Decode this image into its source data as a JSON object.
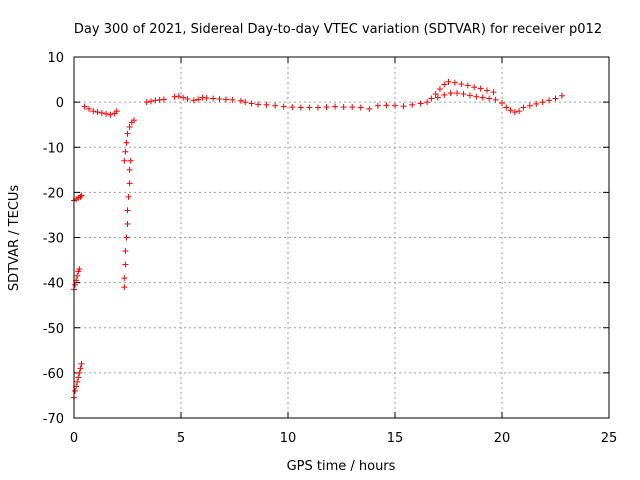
{
  "chart_data": {
    "type": "scatter",
    "title": "Day 300 of 2021, Sidereal Day-to-day VTEC variation (SDTVAR) for receiver p012",
    "xlabel": "GPS time / hours",
    "ylabel": "SDTVAR / TECUs",
    "xlim": [
      0,
      25
    ],
    "ylim": [
      -70,
      10
    ],
    "xticks": [
      "0",
      "5",
      "10",
      "15",
      "20",
      "25"
    ],
    "yticks": [
      "10",
      "0",
      "-10",
      "-20",
      "-30",
      "-40",
      "-50",
      "-60",
      "-70"
    ],
    "grid": true,
    "marker": "+",
    "series": [
      {
        "name": "SDTVAR",
        "color": "#ff0000",
        "points": [
          [
            0.0,
            -65.5
          ],
          [
            0.05,
            -64
          ],
          [
            0.1,
            -63
          ],
          [
            0.15,
            -62
          ],
          [
            0.2,
            -61
          ],
          [
            0.25,
            -60
          ],
          [
            0.3,
            -59
          ],
          [
            0.35,
            -58
          ],
          [
            0.0,
            -41.5
          ],
          [
            0.05,
            -40.5
          ],
          [
            0.1,
            -39.5
          ],
          [
            0.15,
            -38.5
          ],
          [
            0.2,
            -37.5
          ],
          [
            0.25,
            -37
          ],
          [
            0.0,
            -21.8
          ],
          [
            0.1,
            -21.5
          ],
          [
            0.2,
            -21.2
          ],
          [
            0.3,
            -21.0
          ],
          [
            0.35,
            -20.7
          ],
          [
            0.5,
            -1.0
          ],
          [
            0.7,
            -1.5
          ],
          [
            0.9,
            -2.0
          ],
          [
            1.1,
            -2.2
          ],
          [
            1.3,
            -2.4
          ],
          [
            1.5,
            -2.6
          ],
          [
            1.7,
            -2.8
          ],
          [
            1.9,
            -2.5
          ],
          [
            2.0,
            -2.0
          ],
          [
            2.35,
            -41
          ],
          [
            2.35,
            -39
          ],
          [
            2.4,
            -36
          ],
          [
            2.4,
            -33
          ],
          [
            2.45,
            -30
          ],
          [
            2.5,
            -27
          ],
          [
            2.5,
            -24
          ],
          [
            2.55,
            -21
          ],
          [
            2.6,
            -18
          ],
          [
            2.6,
            -15
          ],
          [
            2.65,
            -13
          ],
          [
            2.35,
            -13
          ],
          [
            2.4,
            -11
          ],
          [
            2.45,
            -9
          ],
          [
            2.5,
            -7
          ],
          [
            2.6,
            -5.5
          ],
          [
            2.7,
            -4.5
          ],
          [
            2.8,
            -4
          ],
          [
            3.4,
            0.0
          ],
          [
            3.6,
            0.2
          ],
          [
            3.8,
            0.4
          ],
          [
            4.0,
            0.5
          ],
          [
            4.2,
            0.6
          ],
          [
            4.7,
            1.2
          ],
          [
            4.9,
            1.3
          ],
          [
            5.1,
            1.0
          ],
          [
            5.3,
            0.7
          ],
          [
            5.6,
            0.4
          ],
          [
            5.8,
            0.6
          ],
          [
            6.0,
            1.0
          ],
          [
            6.2,
            0.9
          ],
          [
            6.5,
            0.8
          ],
          [
            6.8,
            0.7
          ],
          [
            7.1,
            0.6
          ],
          [
            7.4,
            0.5
          ],
          [
            7.8,
            0.3
          ],
          [
            8.0,
            0.0
          ],
          [
            8.3,
            -0.3
          ],
          [
            8.6,
            -0.5
          ],
          [
            9.0,
            -0.6
          ],
          [
            9.4,
            -0.8
          ],
          [
            9.8,
            -1.0
          ],
          [
            10.2,
            -1.1
          ],
          [
            10.6,
            -1.2
          ],
          [
            11.0,
            -1.2
          ],
          [
            11.4,
            -1.2
          ],
          [
            11.8,
            -1.1
          ],
          [
            12.2,
            -1.0
          ],
          [
            12.6,
            -1.1
          ],
          [
            13.0,
            -1.1
          ],
          [
            13.4,
            -1.2
          ],
          [
            13.8,
            -1.5
          ],
          [
            14.2,
            -0.8
          ],
          [
            14.6,
            -0.7
          ],
          [
            15.0,
            -0.8
          ],
          [
            15.4,
            -0.9
          ],
          [
            15.8,
            -0.6
          ],
          [
            16.2,
            -0.3
          ],
          [
            16.5,
            0.0
          ],
          [
            16.7,
            0.8
          ],
          [
            16.9,
            1.8
          ],
          [
            17.1,
            2.9
          ],
          [
            17.3,
            3.9
          ],
          [
            17.5,
            4.5
          ],
          [
            17.8,
            4.3
          ],
          [
            18.1,
            4.0
          ],
          [
            18.4,
            3.7
          ],
          [
            18.7,
            3.3
          ],
          [
            19.0,
            3.0
          ],
          [
            19.3,
            2.6
          ],
          [
            19.6,
            2.2
          ],
          [
            17.0,
            1.0
          ],
          [
            17.3,
            1.6
          ],
          [
            17.6,
            2.0
          ],
          [
            17.9,
            2.0
          ],
          [
            18.2,
            1.8
          ],
          [
            18.5,
            1.5
          ],
          [
            18.8,
            1.2
          ],
          [
            19.1,
            1.0
          ],
          [
            19.4,
            0.8
          ],
          [
            19.7,
            0.5
          ],
          [
            20.0,
            -0.2
          ],
          [
            20.2,
            -1.2
          ],
          [
            20.4,
            -1.8
          ],
          [
            20.6,
            -2.2
          ],
          [
            20.8,
            -2.0
          ],
          [
            21.0,
            -1.2
          ],
          [
            21.3,
            -0.8
          ],
          [
            21.6,
            -0.4
          ],
          [
            21.9,
            0.0
          ],
          [
            22.2,
            0.4
          ],
          [
            22.5,
            0.8
          ],
          [
            22.8,
            1.4
          ]
        ]
      }
    ]
  }
}
